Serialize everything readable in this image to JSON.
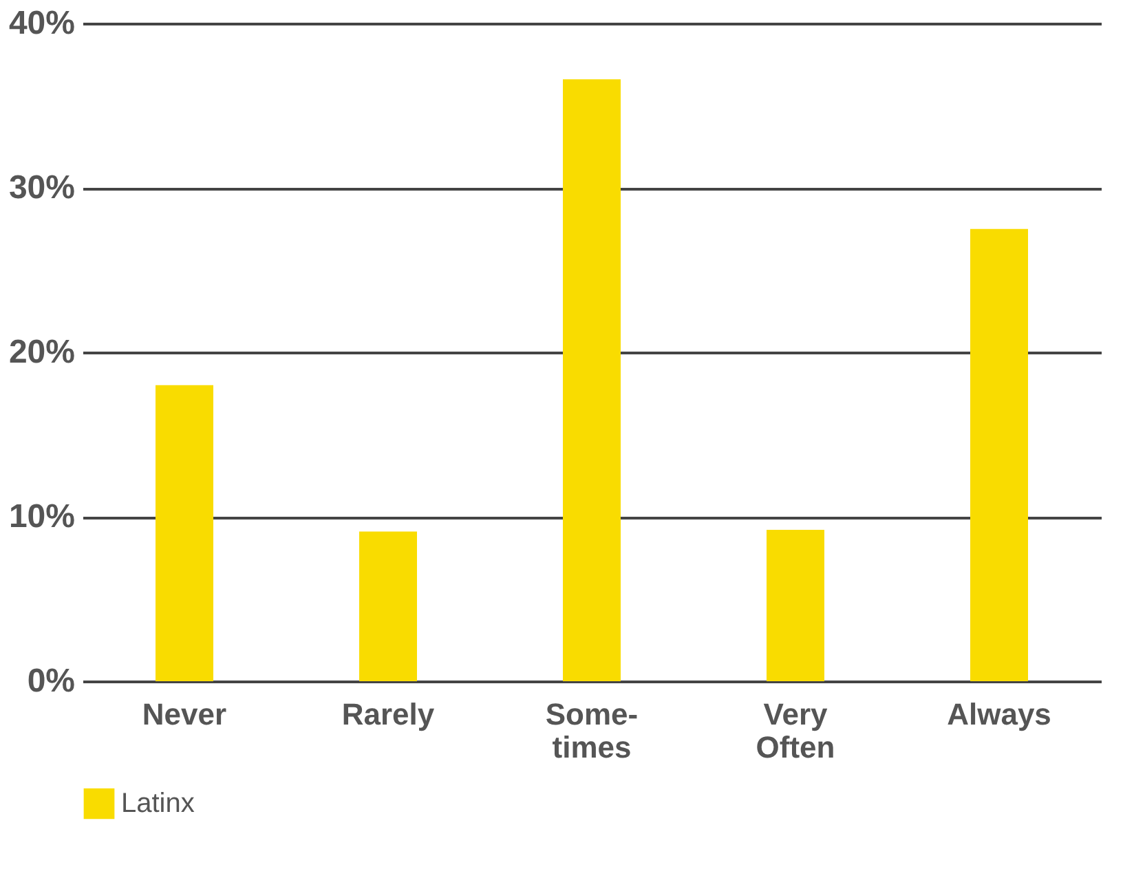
{
  "chart_data": {
    "type": "bar",
    "categories": [
      "Never",
      "Rarely",
      "Some-\ntimes",
      "Very\nOften",
      "Always"
    ],
    "series": [
      {
        "name": "Latinx",
        "color": "#f9dc00",
        "values": [
          18.0,
          9.1,
          36.6,
          9.2,
          27.5
        ]
      }
    ],
    "ylim": [
      0,
      40
    ],
    "yticks": [
      {
        "value": 0,
        "label": "0%"
      },
      {
        "value": 10,
        "label": "10%"
      },
      {
        "value": 20,
        "label": "20%"
      },
      {
        "value": 30,
        "label": "30%"
      },
      {
        "value": 40,
        "label": "40%"
      }
    ],
    "grid": "y",
    "legend": "bottom"
  }
}
